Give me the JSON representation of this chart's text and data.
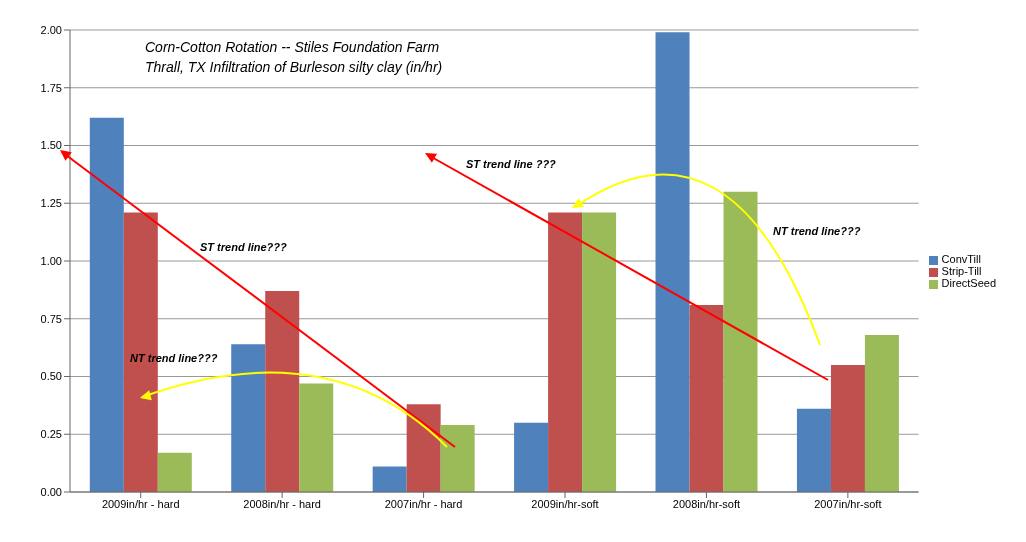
{
  "chart_data": {
    "type": "bar",
    "title": "Corn-Cotton Rotation -- Stiles Foundation Farm",
    "subtitle": "Thrall, TX  Infiltration of Burleson silty clay (in/hr)",
    "categories": [
      "2009in/hr - hard",
      "2008in/hr - hard",
      "2007in/hr - hard",
      "2009in/hr-soft",
      "2008in/hr-soft",
      "2007in/hr-soft"
    ],
    "series": [
      {
        "name": "ConvTill",
        "color": "#4f81bd",
        "values": [
          1.62,
          0.64,
          0.11,
          0.3,
          1.99,
          0.36
        ]
      },
      {
        "name": "Strip-Till",
        "color": "#c0504d",
        "values": [
          1.21,
          0.87,
          0.38,
          1.21,
          0.81,
          0.55
        ]
      },
      {
        "name": "DirectSeed",
        "color": "#9bbb59",
        "values": [
          0.17,
          0.47,
          0.29,
          1.21,
          1.3,
          0.68
        ]
      }
    ],
    "ylim": [
      0,
      2
    ],
    "yticks": [
      {
        "value": 0,
        "label": "0.00"
      },
      {
        "value": 0.25,
        "label": "0.25"
      },
      {
        "value": 0.5,
        "label": "0.50"
      },
      {
        "value": 0.75,
        "label": "0.75"
      },
      {
        "value": 1,
        "label": "1.00"
      },
      {
        "value": 1.25,
        "label": "1.25"
      },
      {
        "value": 1.5,
        "label": "1.50"
      },
      {
        "value": 1.75,
        "label": "1.75"
      },
      {
        "value": 2,
        "label": "2.00"
      }
    ],
    "grid": "y",
    "legend": "right",
    "annotations": [
      "ST trend line???",
      "NT trend line???",
      "ST trend line ???",
      "NT trend line???"
    ]
  }
}
